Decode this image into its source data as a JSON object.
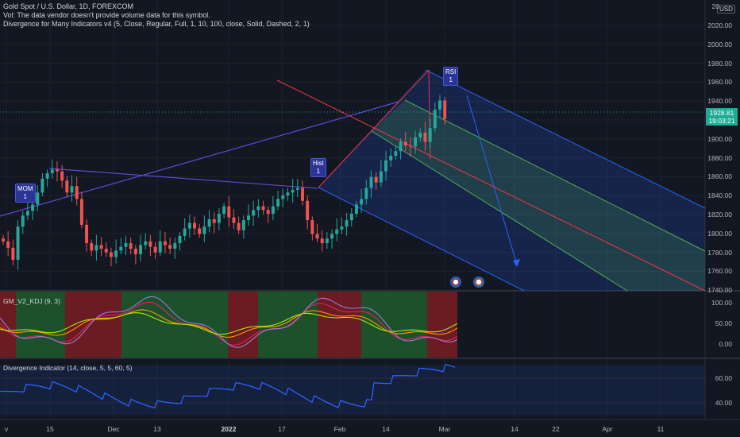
{
  "header": {
    "symbol_line": "Gold Spot / U.S. Dollar, 1D, FOREXCOM",
    "vol_line": "Vol: The data vendor doesn't provide volume data for this symbol.",
    "divergence_line": "Divergence for Many Indicators v4 (5, Close, Regular, Full, 1, 10, 100, close, Solid, Dashed, 2, 1)"
  },
  "price_axis": {
    "currency": "USD",
    "top_label": "20",
    "labels": [
      "2020.00",
      "2000.00",
      "1980.00",
      "1960.00",
      "1940.00",
      "1920.00",
      "1900.00",
      "1880.00",
      "1860.00",
      "1840.00",
      "1820.00",
      "1800.00",
      "1780.00",
      "1760.00",
      "1740.00"
    ],
    "current_price": "1928.81",
    "countdown": "19:03:21"
  },
  "panes": {
    "kdj": {
      "label": "GM_V2_KDJ (9, 3)",
      "axis": [
        "100.00",
        "50.00",
        "0.00"
      ]
    },
    "divergence": {
      "label": "Divergence Indicator (14, close, 5, 5, 60, 5)",
      "axis": [
        "60.00",
        "40.00"
      ]
    }
  },
  "time_axis": {
    "labels": [
      {
        "text": "v",
        "bold": false
      },
      {
        "text": "15",
        "bold": false
      },
      {
        "text": "Dec",
        "bold": false
      },
      {
        "text": "13",
        "bold": false
      },
      {
        "text": "2022",
        "bold": true
      },
      {
        "text": "17",
        "bold": false
      },
      {
        "text": "Feb",
        "bold": false
      },
      {
        "text": "14",
        "bold": false
      },
      {
        "text": "Mar",
        "bold": false
      },
      {
        "text": "14",
        "bold": false
      },
      {
        "text": "22",
        "bold": false
      },
      {
        "text": "Apr",
        "bold": false
      },
      {
        "text": "11",
        "bold": false
      }
    ]
  },
  "badges": [
    {
      "title": "MOM",
      "count": "1"
    },
    {
      "title": "Hist",
      "count": "1"
    },
    {
      "title": "RSI",
      "count": "1"
    }
  ],
  "colors": {
    "background": "#131722",
    "bull": "#26a69a",
    "bear": "#ef5350",
    "accent": "#2962ff",
    "pitchfork_blue": "#2962ff",
    "pitchfork_green": "#4caf50",
    "median_red": "#f23645"
  },
  "chart_data": {
    "type": "candlestick",
    "title": "Gold Spot / U.S. Dollar, 1D, FOREXCOM",
    "ylim": [
      1740,
      2030
    ],
    "close": [
      1792,
      1785,
      1772,
      1808,
      1820,
      1825,
      1832,
      1845,
      1860,
      1866,
      1870,
      1868,
      1858,
      1845,
      1852,
      1838,
      1810,
      1790,
      1782,
      1788,
      1784,
      1780,
      1775,
      1782,
      1786,
      1790,
      1784,
      1778,
      1788,
      1792,
      1786,
      1780,
      1792,
      1788,
      1784,
      1790,
      1798,
      1806,
      1812,
      1806,
      1800,
      1808,
      1816,
      1812,
      1822,
      1830,
      1818,
      1812,
      1804,
      1815,
      1820,
      1826,
      1830,
      1826,
      1822,
      1830,
      1838,
      1842,
      1845,
      1848,
      1850,
      1836,
      1815,
      1800,
      1795,
      1790,
      1795,
      1800,
      1805,
      1808,
      1815,
      1822,
      1832,
      1838,
      1850,
      1862,
      1856,
      1868,
      1880,
      1885,
      1890,
      1900,
      1896,
      1895,
      1905,
      1910,
      1900,
      1915,
      1935,
      1945,
      1925
    ]
  }
}
